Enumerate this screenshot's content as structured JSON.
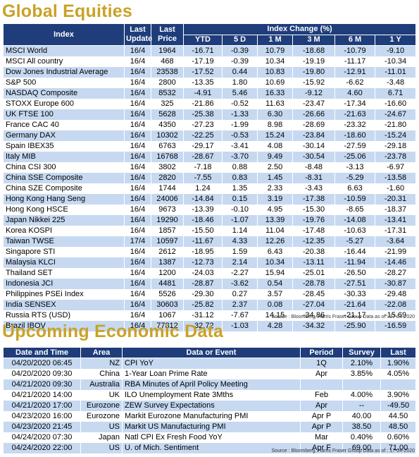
{
  "equities": {
    "title": "Global Equities",
    "headers": {
      "index": "Index",
      "last_update": "Last Update",
      "last_price": "Last Price",
      "index_change": "Index Change (%)",
      "periods": [
        "YTD",
        "5 D",
        "1 M",
        "3 M",
        "6 M",
        "1 Y"
      ]
    },
    "rows": [
      {
        "name": "MSCI World",
        "update": "16/4",
        "price": "1964",
        "vals": [
          "-16.71",
          "-0.39",
          "10.79",
          "-18.68",
          "-10.79",
          "-9.10"
        ]
      },
      {
        "name": "MSCI All country",
        "update": "16/4",
        "price": "468",
        "vals": [
          "-17.19",
          "-0.39",
          "10.34",
          "-19.19",
          "-11.17",
          "-10.34"
        ]
      },
      {
        "name": "Dow Jones Industrial Average",
        "update": "16/4",
        "price": "23538",
        "vals": [
          "-17.52",
          "0.44",
          "10.83",
          "-19.80",
          "-12.91",
          "-11.01"
        ]
      },
      {
        "name": "S&P 500",
        "update": "16/4",
        "price": "2800",
        "vals": [
          "-13.35",
          "1.80",
          "10.69",
          "-15.92",
          "-6.62",
          "-3.48"
        ]
      },
      {
        "name": "NASDAQ Composite",
        "update": "16/4",
        "price": "8532",
        "vals": [
          "-4.91",
          "5.46",
          "16.33",
          "-9.12",
          "4.60",
          "6.71"
        ]
      },
      {
        "name": "STOXX Europe 600",
        "update": "16/4",
        "price": "325",
        "vals": [
          "-21.86",
          "-0.52",
          "11.63",
          "-23.47",
          "-17.34",
          "-16.60"
        ]
      },
      {
        "name": "UK FTSE 100",
        "update": "16/4",
        "price": "5628",
        "vals": [
          "-25.38",
          "-1.33",
          "6.30",
          "-26.66",
          "-21.63",
          "-24.67"
        ]
      },
      {
        "name": "France CAC 40",
        "update": "16/4",
        "price": "4350",
        "vals": [
          "-27.23",
          "-1.99",
          "8.98",
          "-28.69",
          "-23.32",
          "-21.80"
        ]
      },
      {
        "name": "Germany DAX",
        "update": "16/4",
        "price": "10302",
        "vals": [
          "-22.25",
          "-0.53",
          "15.24",
          "-23.84",
          "-18.60",
          "-15.24"
        ]
      },
      {
        "name": "Spain IBEX35",
        "update": "16/4",
        "price": "6763",
        "vals": [
          "-29.17",
          "-3.41",
          "4.08",
          "-30.14",
          "-27.59",
          "-29.18"
        ]
      },
      {
        "name": "Italy MIB",
        "update": "16/4",
        "price": "16768",
        "vals": [
          "-28.67",
          "-3.70",
          "9.49",
          "-30.54",
          "-25.06",
          "-23.78"
        ]
      },
      {
        "name": "China CSI 300",
        "update": "16/4",
        "price": "3802",
        "vals": [
          "-7.18",
          "0.88",
          "2.50",
          "-8.48",
          "-3.13",
          "-6.97"
        ]
      },
      {
        "name": "China SSE Composite",
        "update": "16/4",
        "price": "2820",
        "vals": [
          "-7.55",
          "0.83",
          "1.45",
          "-8.31",
          "-5.29",
          "-13.58"
        ]
      },
      {
        "name": "China SZE Composite",
        "update": "16/4",
        "price": "1744",
        "vals": [
          "1.24",
          "1.35",
          "2.33",
          "-3.43",
          "6.63",
          "-1.60"
        ]
      },
      {
        "name": "Hong Kong Hang Seng",
        "update": "16/4",
        "price": "24006",
        "vals": [
          "-14.84",
          "0.15",
          "3.19",
          "-17.38",
          "-10.59",
          "-20.31"
        ]
      },
      {
        "name": "Hong Kong HSCE",
        "update": "16/4",
        "price": "9673",
        "vals": [
          "-13.39",
          "-0.10",
          "4.95",
          "-15.30",
          "-8.65",
          "-18.37"
        ]
      },
      {
        "name": "Japan Nikkei 225",
        "update": "16/4",
        "price": "19290",
        "vals": [
          "-18.46",
          "-1.07",
          "13.39",
          "-19.76",
          "-14.08",
          "-13.41"
        ]
      },
      {
        "name": "Korea KOSPI",
        "update": "16/4",
        "price": "1857",
        "vals": [
          "-15.50",
          "1.14",
          "11.04",
          "-17.48",
          "-10.63",
          "-17.31"
        ]
      },
      {
        "name": "Taiwan TWSE",
        "update": "17/4",
        "price": "10597",
        "vals": [
          "-11.67",
          "4.33",
          "12.26",
          "-12.35",
          "-5.27",
          "-3.64"
        ]
      },
      {
        "name": "Singapore STI",
        "update": "16/4",
        "price": "2612",
        "vals": [
          "-18.95",
          "1.59",
          "6.43",
          "-20.38",
          "-16.44",
          "-21.99"
        ]
      },
      {
        "name": "Malaysia KLCI",
        "update": "16/4",
        "price": "1387",
        "vals": [
          "-12.73",
          "2.14",
          "10.34",
          "-13.11",
          "-11.94",
          "-14.46"
        ]
      },
      {
        "name": "Thailand SET",
        "update": "16/4",
        "price": "1200",
        "vals": [
          "-24.03",
          "-2.27",
          "15.94",
          "-25.01",
          "-26.50",
          "-28.27"
        ]
      },
      {
        "name": "Indonesia JCI",
        "update": "16/4",
        "price": "4481",
        "vals": [
          "-28.87",
          "-3.62",
          "0.54",
          "-28.78",
          "-27.51",
          "-30.87"
        ]
      },
      {
        "name": "Philippines PSEi Index",
        "update": "16/4",
        "price": "5526",
        "vals": [
          "-29.30",
          "0.27",
          "3.57",
          "-28.45",
          "-30.33",
          "-29.48"
        ]
      },
      {
        "name": "India SENSEX",
        "update": "16/4",
        "price": "30603",
        "vals": [
          "-25.82",
          "2.37",
          "0.08",
          "-27.04",
          "-21.64",
          "-22.08"
        ]
      },
      {
        "name": "Russia RTS (USD)",
        "update": "16/4",
        "price": "1067",
        "vals": [
          "-31.12",
          "-7.67",
          "14.15",
          "-34.86",
          "-21.17",
          "-15.69"
        ]
      },
      {
        "name": "Brazil IBOV",
        "update": "16/4",
        "price": "77812",
        "vals": [
          "-32.72",
          "-1.03",
          "4.28",
          "-34.32",
          "-25.90",
          "-16.59"
        ]
      }
    ],
    "source": "Source : Bloomberg, Harris Fraser Group Data as of : 17-04-2020"
  },
  "economic": {
    "title": "Upcoming Economic Data",
    "headers": {
      "datetime": "Date and Time",
      "area": "Area",
      "event": "Data or Event",
      "period": "Period",
      "survey": "Survey",
      "last": "Last"
    },
    "rows": [
      {
        "datetime": "04/20/2020 06:45",
        "area": "NZ",
        "event": "CPI YoY",
        "period": "1Q",
        "survey": "2.10%",
        "last": "1.90%"
      },
      {
        "datetime": "04/20/2020 09:30",
        "area": "China",
        "event": "1-Year Loan Prime Rate",
        "period": "Apr",
        "survey": "3.85%",
        "last": "4.05%"
      },
      {
        "datetime": "04/21/2020 09:30",
        "area": "Australia",
        "event": "RBA Minutes of April Policy Meeting",
        "period": "",
        "survey": "",
        "last": ""
      },
      {
        "datetime": "04/21/2020 14:00",
        "area": "UK",
        "event": "ILO Unemployment Rate 3Mths",
        "period": "Feb",
        "survey": "4.00%",
        "last": "3.90%"
      },
      {
        "datetime": "04/21/2020 17:00",
        "area": "Eurozone",
        "event": "ZEW Survey Expectations",
        "period": "Apr",
        "survey": "--",
        "last": "-49.50"
      },
      {
        "datetime": "04/23/2020 16:00",
        "area": "Eurozone",
        "event": "Markit Eurozone Manufacturing PMI",
        "period": "Apr P",
        "survey": "40.00",
        "last": "44.50"
      },
      {
        "datetime": "04/23/2020 21:45",
        "area": "US",
        "event": "Markit US Manufacturing PMI",
        "period": "Apr P",
        "survey": "38.50",
        "last": "48.50"
      },
      {
        "datetime": "04/24/2020 07:30",
        "area": "Japan",
        "event": "Natl CPI Ex Fresh Food YoY",
        "period": "Mar",
        "survey": "0.40%",
        "last": "0.60%"
      },
      {
        "datetime": "04/24/2020 22:00",
        "area": "US",
        "event": "U. of Mich. Sentiment",
        "period": "Apr F",
        "survey": "69.00",
        "last": "71.00"
      }
    ],
    "source": "Source : Bloomberg, Harris Fraser Group Data as of : 17-04-2020"
  }
}
